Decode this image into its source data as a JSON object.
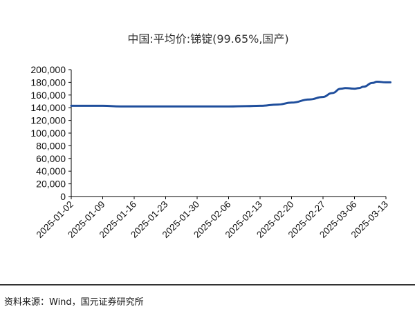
{
  "chart_data": {
    "type": "line",
    "title": "中国:平均价:锑锭(99.65%,国产)",
    "xlabel": "",
    "ylabel": "",
    "ylim": [
      0,
      200000
    ],
    "yticks": [
      "0",
      "20,000",
      "40,000",
      "60,000",
      "80,000",
      "100,000",
      "120,000",
      "140,000",
      "160,000",
      "180,000",
      "200,000"
    ],
    "xticks": [
      "2025-01-02",
      "2025-01-09",
      "2025-01-16",
      "2025-01-23",
      "2025-01-30",
      "2025-02-06",
      "2025-02-13",
      "2025-02-20",
      "2025-02-27",
      "2025-03-06",
      "2025-03-13"
    ],
    "grid": false,
    "series": [
      {
        "color": "#1f4e9c",
        "points": [
          [
            "2025-01-02",
            143000
          ],
          [
            "2025-01-09",
            143000
          ],
          [
            "2025-01-13",
            142000
          ],
          [
            "2025-01-16",
            142000
          ],
          [
            "2025-01-23",
            142000
          ],
          [
            "2025-01-30",
            142000
          ],
          [
            "2025-02-06",
            142000
          ],
          [
            "2025-02-10",
            142500
          ],
          [
            "2025-02-13",
            143000
          ],
          [
            "2025-02-17",
            145000
          ],
          [
            "2025-02-20",
            148000
          ],
          [
            "2025-02-24",
            153000
          ],
          [
            "2025-02-27",
            157000
          ],
          [
            "2025-03-01",
            163000
          ],
          [
            "2025-03-03",
            170000
          ],
          [
            "2025-03-04",
            171000
          ],
          [
            "2025-03-06",
            170000
          ],
          [
            "2025-03-07",
            171000
          ],
          [
            "2025-03-08",
            173000
          ],
          [
            "2025-03-10",
            179000
          ],
          [
            "2025-03-11",
            181000
          ],
          [
            "2025-03-13",
            180000
          ],
          [
            "2025-03-14",
            180000
          ]
        ]
      }
    ]
  },
  "source": "资料来源：Wind，国元证券研究所"
}
